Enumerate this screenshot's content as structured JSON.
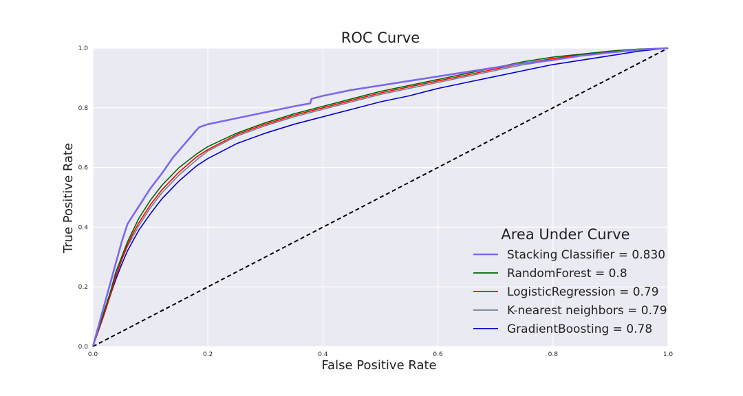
{
  "chart_data": {
    "type": "line",
    "title": "ROC Curve",
    "xlabel": "False Positive Rate",
    "ylabel": "True Positive Rate",
    "xlim": [
      0,
      1
    ],
    "ylim": [
      0,
      1
    ],
    "xticks": [
      "0.0",
      "0.2",
      "0.4",
      "0.6",
      "0.8",
      "1.0"
    ],
    "yticks": [
      "0.0",
      "0.2",
      "0.4",
      "0.6",
      "0.8",
      "1.0"
    ],
    "grid": true,
    "legend": {
      "title": "Area Under Curve",
      "position": "lower-right"
    },
    "series": [
      {
        "name": "Stacking Classifier = 0.830",
        "color": "#7b68ee",
        "x": [
          0,
          0.01,
          0.02,
          0.03,
          0.04,
          0.05,
          0.06,
          0.065,
          0.08,
          0.1,
          0.12,
          0.14,
          0.16,
          0.18,
          0.185,
          0.2,
          0.25,
          0.3,
          0.35,
          0.378,
          0.38,
          0.4,
          0.45,
          0.5,
          0.55,
          0.6,
          0.65,
          0.7,
          0.75,
          0.8,
          0.85,
          0.9,
          0.95,
          1.0
        ],
        "y": [
          0,
          0.07,
          0.14,
          0.21,
          0.28,
          0.35,
          0.41,
          0.425,
          0.47,
          0.53,
          0.58,
          0.635,
          0.68,
          0.725,
          0.735,
          0.745,
          0.765,
          0.785,
          0.805,
          0.815,
          0.83,
          0.84,
          0.86,
          0.875,
          0.89,
          0.905,
          0.92,
          0.935,
          0.95,
          0.96,
          0.975,
          0.985,
          0.995,
          1.0
        ]
      },
      {
        "name": "RandomForest = 0.8",
        "color": "#006400",
        "x": [
          0,
          0.01,
          0.02,
          0.03,
          0.04,
          0.05,
          0.06,
          0.07,
          0.08,
          0.1,
          0.12,
          0.15,
          0.18,
          0.2,
          0.25,
          0.3,
          0.35,
          0.4,
          0.45,
          0.5,
          0.55,
          0.6,
          0.65,
          0.7,
          0.75,
          0.8,
          0.85,
          0.9,
          0.95,
          1.0
        ],
        "y": [
          0,
          0.06,
          0.12,
          0.18,
          0.25,
          0.3,
          0.35,
          0.39,
          0.43,
          0.49,
          0.54,
          0.6,
          0.645,
          0.67,
          0.715,
          0.75,
          0.78,
          0.805,
          0.83,
          0.855,
          0.875,
          0.895,
          0.915,
          0.935,
          0.955,
          0.97,
          0.98,
          0.99,
          0.997,
          1.0
        ]
      },
      {
        "name": "LogisticRegression = 0.79",
        "color": "#ff0000",
        "x": [
          0,
          0.01,
          0.02,
          0.03,
          0.04,
          0.05,
          0.06,
          0.07,
          0.08,
          0.1,
          0.12,
          0.15,
          0.18,
          0.2,
          0.25,
          0.3,
          0.35,
          0.4,
          0.45,
          0.5,
          0.55,
          0.6,
          0.65,
          0.7,
          0.75,
          0.8,
          0.85,
          0.9,
          0.95,
          1.0
        ],
        "y": [
          0,
          0.055,
          0.11,
          0.17,
          0.235,
          0.29,
          0.34,
          0.38,
          0.415,
          0.475,
          0.525,
          0.585,
          0.635,
          0.66,
          0.71,
          0.745,
          0.775,
          0.8,
          0.825,
          0.85,
          0.87,
          0.89,
          0.91,
          0.93,
          0.95,
          0.965,
          0.978,
          0.988,
          0.996,
          1.0
        ]
      },
      {
        "name": "K-nearest neighbors = 0.79",
        "color": "#708090",
        "x": [
          0,
          0.01,
          0.02,
          0.03,
          0.04,
          0.05,
          0.06,
          0.07,
          0.08,
          0.1,
          0.12,
          0.15,
          0.18,
          0.2,
          0.25,
          0.3,
          0.35,
          0.4,
          0.45,
          0.5,
          0.55,
          0.6,
          0.65,
          0.7,
          0.75,
          0.8,
          0.85,
          0.9,
          0.95,
          1.0
        ],
        "y": [
          0,
          0.06,
          0.12,
          0.18,
          0.24,
          0.29,
          0.335,
          0.37,
          0.405,
          0.465,
          0.515,
          0.575,
          0.625,
          0.655,
          0.705,
          0.74,
          0.77,
          0.795,
          0.82,
          0.845,
          0.865,
          0.885,
          0.905,
          0.925,
          0.945,
          0.96,
          0.975,
          0.987,
          0.995,
          1.0
        ]
      },
      {
        "name": "GradientBoosting = 0.78",
        "color": "#0000cd",
        "x": [
          0,
          0.01,
          0.02,
          0.03,
          0.04,
          0.05,
          0.06,
          0.07,
          0.08,
          0.1,
          0.12,
          0.15,
          0.18,
          0.2,
          0.25,
          0.3,
          0.35,
          0.4,
          0.45,
          0.5,
          0.55,
          0.6,
          0.65,
          0.7,
          0.75,
          0.8,
          0.85,
          0.9,
          0.95,
          1.0
        ],
        "y": [
          0,
          0.055,
          0.11,
          0.17,
          0.225,
          0.275,
          0.32,
          0.355,
          0.39,
          0.445,
          0.495,
          0.555,
          0.605,
          0.63,
          0.68,
          0.715,
          0.745,
          0.77,
          0.795,
          0.82,
          0.84,
          0.865,
          0.885,
          0.905,
          0.925,
          0.945,
          0.96,
          0.975,
          0.99,
          1.0
        ]
      },
      {
        "name": "",
        "color": "#000000",
        "dashed": true,
        "x": [
          0,
          1
        ],
        "y": [
          0,
          1
        ]
      }
    ]
  }
}
